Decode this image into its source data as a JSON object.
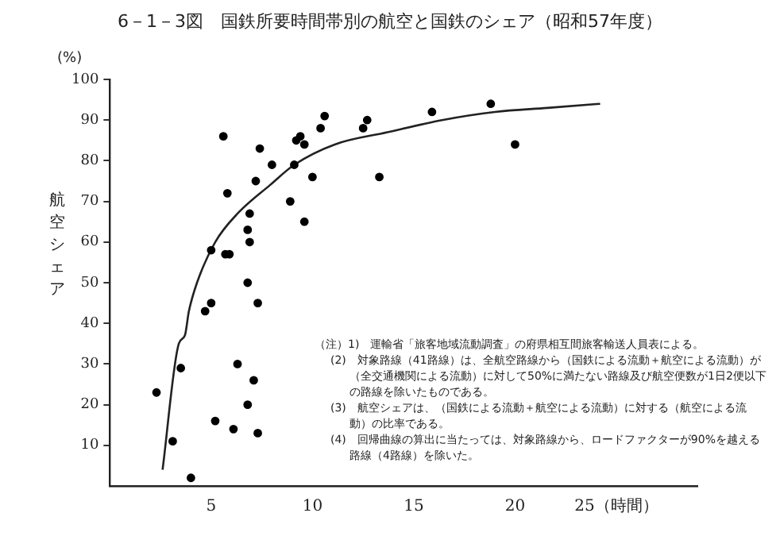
{
  "chart_data": {
    "type": "scatter",
    "title": "6－1－3図　国鉄所要時間帯別の航空と国鉄のシェア（昭和57年度）",
    "ylabel": "航空シェア",
    "annotations": [
      "(%)",
      "（注）1)　運輸省「旅客地域流動調査」の府県相互間旅客輸送人員表による。",
      "(2)　対象路線（41路線）は、全航空路線から（国鉄による流動＋航空による流動）が（全交通機関による流動）に対して50%に満たない路線及び航空便数が1日2便以下の路線を除いたものである。",
      "(3)　航空シェアは、（国鉄による流動＋航空による流動）に対する（航空による流動）の比率である。",
      "(4)　回帰曲線の算出に当たっては、対象路線から、ロードファクターが90%を越える路線（4路線）を除いた。"
    ],
    "xlim": [
      0,
      29
    ],
    "ylim": [
      0,
      100
    ],
    "xticks": [
      5,
      10,
      15,
      20,
      {
        "value": 25,
        "label": "25（時間）"
      }
    ],
    "yticks": [
      10,
      20,
      30,
      40,
      50,
      60,
      70,
      80,
      90,
      100
    ],
    "marker": "circle",
    "series": [
      {
        "color": "#000000",
        "x": [
          5.6,
          10.6,
          9.4,
          9.2,
          9.6,
          10.4,
          12.5,
          12.7,
          7.4,
          8.0,
          9.1,
          10.0,
          13.3,
          7.2,
          5.8,
          8.9,
          6.9,
          9.6,
          6.8,
          6.9,
          5.0,
          5.7,
          5.9,
          6.8,
          5.0,
          7.3,
          4.7,
          3.5,
          6.3,
          7.1,
          2.3,
          6.8,
          5.2,
          6.1,
          7.3,
          3.1,
          4.0,
          15.9,
          18.8,
          20.0
        ],
        "values": [
          86,
          91,
          86,
          85,
          84,
          88,
          88,
          90,
          83,
          79,
          79,
          76,
          76,
          75,
          72,
          70,
          67,
          65,
          63,
          60,
          58,
          57,
          57,
          50,
          45,
          45,
          43,
          29,
          30,
          26,
          23,
          20,
          16,
          14,
          13,
          11,
          2,
          92,
          94,
          84
        ]
      },
      {
        "type": "line",
        "color": "#222222",
        "marker": "none",
        "x": [
          2.6,
          3.4,
          3.7,
          3.9,
          4.3,
          5.2,
          6.3,
          7.9,
          9.1,
          11.1,
          13.7,
          16.4,
          19.0,
          21.6,
          24.2
        ],
        "values": [
          4,
          35,
          37,
          43,
          50,
          60,
          67,
          74,
          79,
          84,
          87,
          90,
          92,
          93,
          94
        ]
      }
    ]
  }
}
